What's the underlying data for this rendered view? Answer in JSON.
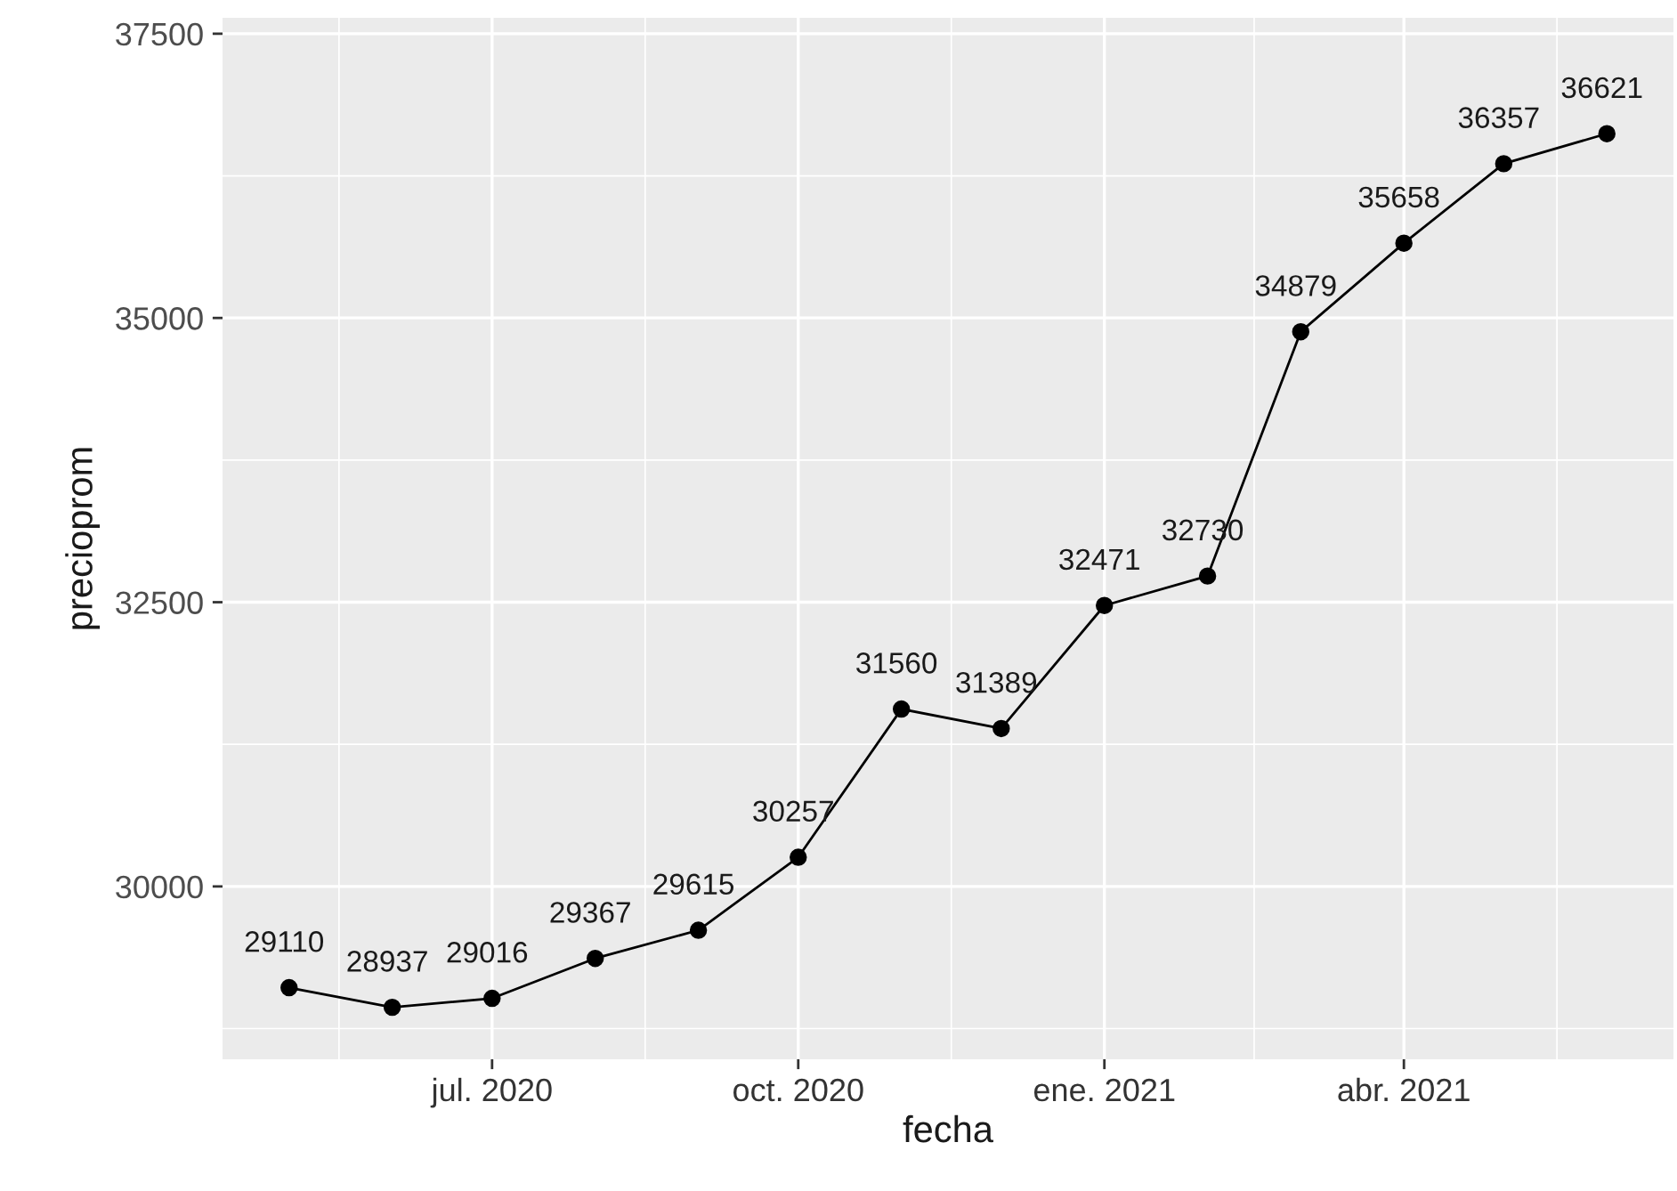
{
  "chart_data": {
    "type": "line",
    "xlabel": "fecha",
    "ylabel": "precioprom",
    "x": [
      "2020-05-01",
      "2020-06-01",
      "2020-07-01",
      "2020-08-01",
      "2020-09-01",
      "2020-10-01",
      "2020-11-01",
      "2020-12-01",
      "2021-01-01",
      "2021-02-01",
      "2021-03-01",
      "2021-04-01",
      "2021-05-01",
      "2021-06-01"
    ],
    "series": [
      {
        "color": "#000000",
        "values": [
          29110,
          28937,
          29016,
          29367,
          29615,
          30257,
          31560,
          31389,
          32471,
          32730,
          34879,
          35658,
          36357,
          36621
        ]
      }
    ],
    "data_labels": true,
    "marker": "circle",
    "line_style": "solid",
    "grid": true,
    "xlim": [
      "2020-04-11",
      "2021-06-21"
    ],
    "xticks": [
      {
        "value": "2020-07-01",
        "label": "jul. 2020"
      },
      {
        "value": "2020-10-01",
        "label": "oct. 2020"
      },
      {
        "value": "2021-01-01",
        "label": "ene. 2021"
      },
      {
        "value": "2021-04-01",
        "label": "abr. 2021"
      }
    ],
    "ylim": [
      28480,
      37640
    ],
    "yticks": [
      30000,
      32500,
      35000,
      37500
    ]
  }
}
